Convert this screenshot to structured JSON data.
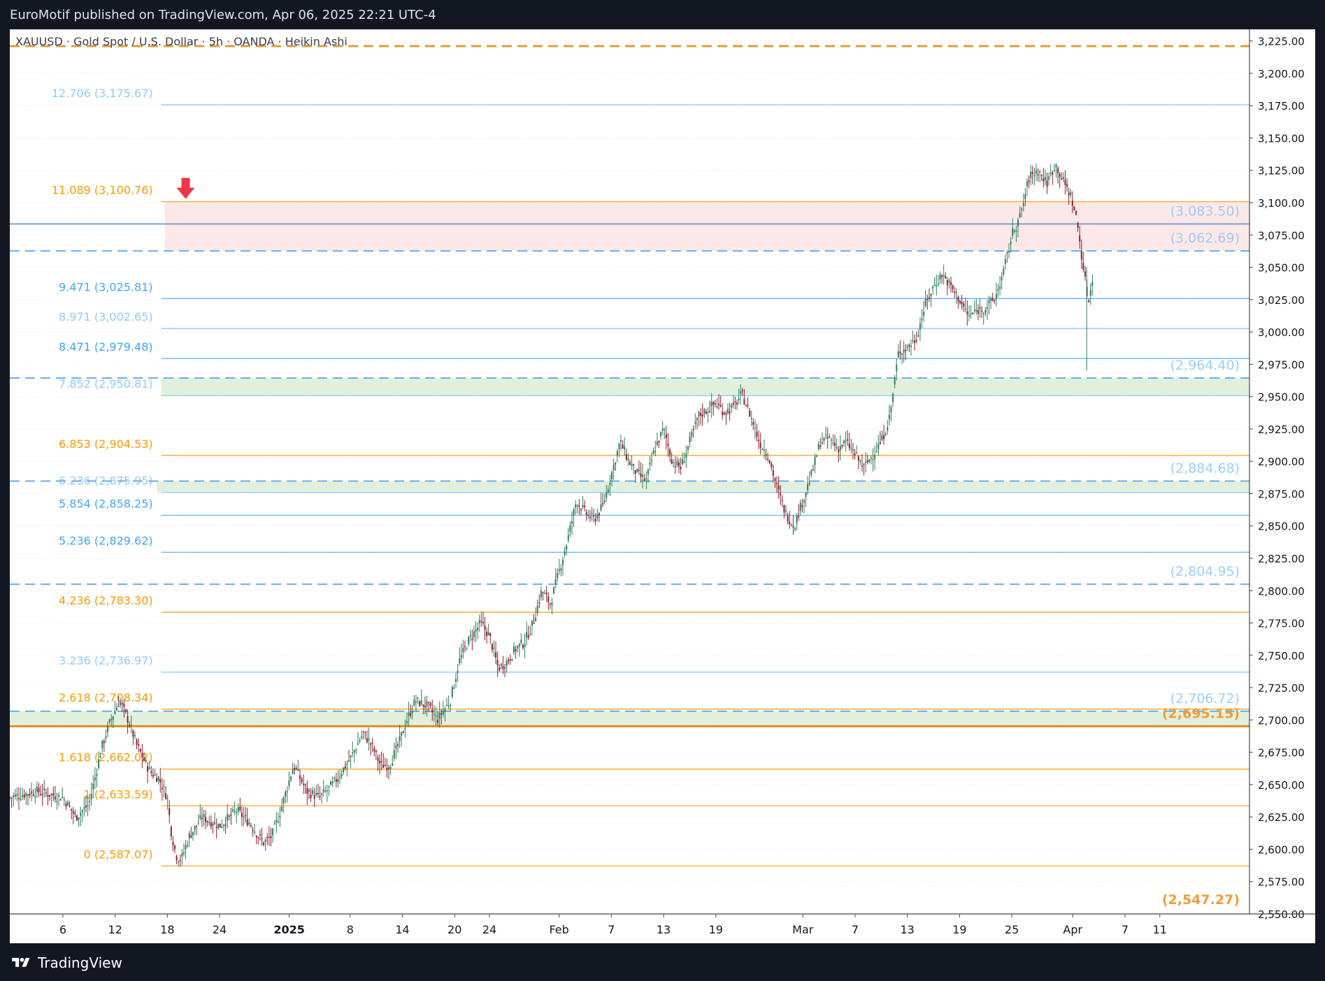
{
  "header": {
    "published_text": "EuroMotif published on TradingView.com, Apr 06, 2025 22:21 UTC-4"
  },
  "footer": {
    "brand": "TradingView",
    "logo_icon": "tradingview-logo-icon"
  },
  "chart_data": {
    "type": "candlestick",
    "symbol_line": "XAUUSD · Gold Spot / U.S. Dollar · 5h · OANDA · Heikin Ashi",
    "ylim": [
      2550,
      3234
    ],
    "y_ticks": [
      "3,225.00",
      "3,200.00",
      "3,175.00",
      "3,150.00",
      "3,125.00",
      "3,100.00",
      "3,075.00",
      "3,050.00",
      "3,025.00",
      "3,000.00",
      "2,975.00",
      "2,950.00",
      "2,925.00",
      "2,900.00",
      "2,875.00",
      "2,850.00",
      "2,825.00",
      "2,800.00",
      "2,775.00",
      "2,750.00",
      "2,725.00",
      "2,700.00",
      "2,675.00",
      "2,650.00",
      "2,625.00",
      "2,600.00",
      "2,575.00",
      "2,550.00"
    ],
    "y_tick_values": [
      3225,
      3200,
      3175,
      3150,
      3125,
      3100,
      3075,
      3050,
      3025,
      3000,
      2975,
      2950,
      2925,
      2900,
      2875,
      2850,
      2825,
      2800,
      2775,
      2750,
      2725,
      2700,
      2675,
      2650,
      2625,
      2600,
      2575,
      2550
    ],
    "x_ticks": [
      {
        "label": "6",
        "day": -26
      },
      {
        "label": "12",
        "day": -20
      },
      {
        "label": "18",
        "day": -14
      },
      {
        "label": "24",
        "day": -8
      },
      {
        "label": "2025",
        "day": 0
      },
      {
        "label": "8",
        "day": 7
      },
      {
        "label": "14",
        "day": 13
      },
      {
        "label": "20",
        "day": 19
      },
      {
        "label": "24",
        "day": 23
      },
      {
        "label": "Feb",
        "day": 31
      },
      {
        "label": "7",
        "day": 37
      },
      {
        "label": "13",
        "day": 43
      },
      {
        "label": "19",
        "day": 49
      },
      {
        "label": "Mar",
        "day": 59
      },
      {
        "label": "7",
        "day": 65
      },
      {
        "label": "13",
        "day": 71
      },
      {
        "label": "19",
        "day": 77
      },
      {
        "label": "25",
        "day": 83
      },
      {
        "label": "Apr",
        "day": 90
      },
      {
        "label": "7",
        "day": 96
      },
      {
        "label": "11",
        "day": 100
      }
    ],
    "x_range_days": [
      -32.1,
      110.3
    ],
    "fib_levels": [
      {
        "label": "12.706 (3,175.67)",
        "value": 3175.67,
        "color": "#90caf9",
        "line": "#90caf9"
      },
      {
        "label": "11.089 (3,100.76)",
        "value": 3100.76,
        "color": "#ff9800",
        "line": "#f9a825"
      },
      {
        "label": "9.471 (3,025.81)",
        "value": 3025.81,
        "color": "#42a5f5",
        "line": "#64b5f6"
      },
      {
        "label": "8.971 (3,002.65)",
        "value": 3002.65,
        "color": "#90caf9",
        "line": "#90caf9"
      },
      {
        "label": "8.471 (2,979.48)",
        "value": 2979.48,
        "color": "#42a5f5",
        "line": "#64b5f6"
      },
      {
        "label": "7.852 (2,950.81)",
        "value": 2950.81,
        "color": "#90caf9",
        "line": "#90caf9"
      },
      {
        "label": "6.853 (2,904.53)",
        "value": 2904.53,
        "color": "#ff9800",
        "line": "#f9a825"
      },
      {
        "label": "6.236 (2,875.95)",
        "value": 2875.95,
        "color": "#90caf9",
        "line": "#90caf9"
      },
      {
        "label": "5.854 (2,858.25)",
        "value": 2858.25,
        "color": "#42a5f5",
        "line": "#64b5f6"
      },
      {
        "label": "5.236 (2,829.62)",
        "value": 2829.62,
        "color": "#42a5f5",
        "line": "#64b5f6"
      },
      {
        "label": "4.236 (2,783.30)",
        "value": 2783.3,
        "color": "#ff9800",
        "line": "#f9a825"
      },
      {
        "label": "3.236 (2,736.97)",
        "value": 2736.97,
        "color": "#90caf9",
        "line": "#90caf9"
      },
      {
        "label": "2.618 (2,708.34)",
        "value": 2708.34,
        "color": "#ff9800",
        "line": "#f9a825"
      },
      {
        "label": "1.618 (2,662.02)",
        "value": 2662.02,
        "color": "#ff9800",
        "line": "#f9a825"
      },
      {
        "label": "1 (2,633.59)",
        "value": 2633.59,
        "color": "#ff9800",
        "line": "#f9a825"
      },
      {
        "label": "0 (2,587.07)",
        "value": 2587.07,
        "color": "#ff9800",
        "line": "#f9a825"
      }
    ],
    "horizontal_levels": [
      {
        "label": "(3,083.50)",
        "value": 3083.5,
        "style": "solid",
        "color": "#90caf9"
      },
      {
        "label": "(3,062.69)",
        "value": 3062.69,
        "style": "dashed",
        "color": "#90caf9"
      },
      {
        "label": "(2,964.40)",
        "value": 2964.4,
        "style": "dashed",
        "color": "#90caf9"
      },
      {
        "label": "(2,884.68)",
        "value": 2884.68,
        "style": "dashed",
        "color": "#90caf9"
      },
      {
        "label": "(2,804.95)",
        "value": 2804.95,
        "style": "dashed",
        "color": "#90caf9"
      },
      {
        "label": "(2,706.72)",
        "value": 2706.72,
        "style": "dashed",
        "color": "#90caf9"
      },
      {
        "label": "(2,695.15)",
        "value": 2695.15,
        "style": "solid-thick",
        "color": "#f29d38"
      },
      {
        "label": "(2,547.27)",
        "value": 2547.27,
        "style": "none",
        "color": "#f29d38"
      }
    ],
    "top_dashed_orange_level": 3221,
    "zones": [
      {
        "name": "resistance-zone",
        "from": 3062.69,
        "to": 3100.76,
        "color": "#fde4e4",
        "start_day": -14.3
      },
      {
        "name": "support-zone-upper",
        "from": 2950.81,
        "to": 2964.4,
        "color": "#dcedd7",
        "start_day": -14.7
      },
      {
        "name": "support-zone-middle",
        "from": 2875.95,
        "to": 2884.68,
        "color": "#dcedd7",
        "start_day": -15.2
      },
      {
        "name": "support-zone-lower",
        "from": 2695.15,
        "to": 2706.72,
        "color": "#dcedd7",
        "start_day": -32.1
      }
    ],
    "sell_arrow": {
      "day": -11.9,
      "value": 3100.76,
      "color": "#f23645"
    },
    "candle_colors": {
      "up": "#2e7d5b",
      "down": "#8b1e2e"
    },
    "path_anchors": [
      [
        -32.1,
        2640
      ],
      [
        -29,
        2645
      ],
      [
        -26,
        2640
      ],
      [
        -24.5,
        2625
      ],
      [
        -23,
        2635
      ],
      [
        -21.5,
        2680
      ],
      [
        -20.5,
        2700
      ],
      [
        -19.5,
        2715
      ],
      [
        -18.5,
        2700
      ],
      [
        -17.5,
        2680
      ],
      [
        -16,
        2660
      ],
      [
        -15,
        2655
      ],
      [
        -14,
        2640
      ],
      [
        -13.6,
        2615
      ],
      [
        -13,
        2595
      ],
      [
        -12.4,
        2592
      ],
      [
        -11.5,
        2610
      ],
      [
        -10,
        2625
      ],
      [
        -8,
        2618
      ],
      [
        -6,
        2630
      ],
      [
        -4.5,
        2620
      ],
      [
        -3,
        2605
      ],
      [
        -2,
        2610
      ],
      [
        -1,
        2630
      ],
      [
        0.5,
        2665
      ],
      [
        2,
        2645
      ],
      [
        3.5,
        2640
      ],
      [
        5,
        2650
      ],
      [
        7,
        2670
      ],
      [
        8.5,
        2690
      ],
      [
        9.5,
        2680
      ],
      [
        10.5,
        2665
      ],
      [
        11.5,
        2665
      ],
      [
        12.5,
        2680
      ],
      [
        13.5,
        2700
      ],
      [
        14.5,
        2715
      ],
      [
        16,
        2710
      ],
      [
        17,
        2700
      ],
      [
        18.5,
        2715
      ],
      [
        19.5,
        2745
      ],
      [
        20.5,
        2760
      ],
      [
        22,
        2775
      ],
      [
        23,
        2765
      ],
      [
        24,
        2740
      ],
      [
        25,
        2745
      ],
      [
        26,
        2755
      ],
      [
        27,
        2760
      ],
      [
        28,
        2775
      ],
      [
        29,
        2800
      ],
      [
        30,
        2790
      ],
      [
        31,
        2815
      ],
      [
        32,
        2840
      ],
      [
        33,
        2870
      ],
      [
        34,
        2860
      ],
      [
        35,
        2855
      ],
      [
        36,
        2865
      ],
      [
        37,
        2890
      ],
      [
        38,
        2915
      ],
      [
        39,
        2900
      ],
      [
        40,
        2890
      ],
      [
        41,
        2885
      ],
      [
        42,
        2910
      ],
      [
        43,
        2925
      ],
      [
        44,
        2900
      ],
      [
        45,
        2895
      ],
      [
        46,
        2915
      ],
      [
        47,
        2935
      ],
      [
        48,
        2940
      ],
      [
        49,
        2945
      ],
      [
        50,
        2938
      ],
      [
        51,
        2942
      ],
      [
        52,
        2952
      ],
      [
        53,
        2935
      ],
      [
        54,
        2915
      ],
      [
        55,
        2905
      ],
      [
        56,
        2880
      ],
      [
        57,
        2860
      ],
      [
        58,
        2850
      ],
      [
        59,
        2870
      ],
      [
        60,
        2890
      ],
      [
        61,
        2915
      ],
      [
        62,
        2918
      ],
      [
        63,
        2910
      ],
      [
        64,
        2915
      ],
      [
        65,
        2905
      ],
      [
        66,
        2895
      ],
      [
        67,
        2905
      ],
      [
        68,
        2915
      ],
      [
        69,
        2935
      ],
      [
        70,
        2985
      ],
      [
        71,
        2988
      ],
      [
        72,
        2995
      ],
      [
        73,
        3020
      ],
      [
        74,
        3035
      ],
      [
        75,
        3045
      ],
      [
        76,
        3035
      ],
      [
        77,
        3025
      ],
      [
        78,
        3012
      ],
      [
        79,
        3017
      ],
      [
        80,
        3019
      ],
      [
        81,
        3025
      ],
      [
        82,
        3045
      ],
      [
        83,
        3075
      ],
      [
        84,
        3090
      ],
      [
        85,
        3120
      ],
      [
        86,
        3125
      ],
      [
        87,
        3115
      ],
      [
        88,
        3130
      ],
      [
        89,
        3115
      ],
      [
        89.8,
        3105
      ],
      [
        90.5,
        3085
      ],
      [
        91.3,
        3045
      ],
      [
        91.8,
        3022
      ],
      [
        92.3,
        3044
      ]
    ]
  }
}
